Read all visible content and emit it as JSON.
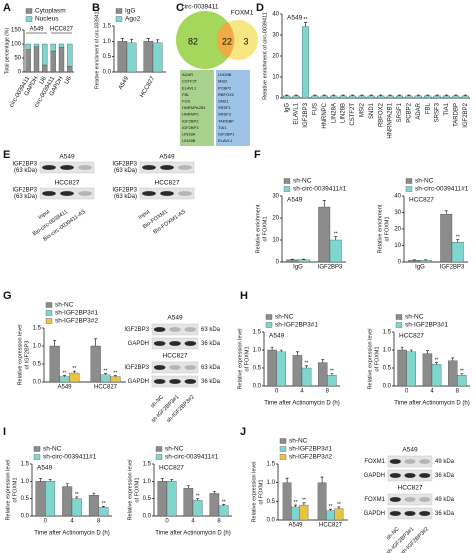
{
  "panel_labels": [
    "A",
    "B",
    "C",
    "D",
    "E",
    "F",
    "G",
    "H",
    "I",
    "J"
  ],
  "chart_data": [
    {
      "type": "stacked_bar",
      "ylabel": [
        "Total percentage (%)"
      ],
      "categories": [
        "circ-0039411",
        "GAPDH",
        "U6",
        "circ-0039411",
        "GAPDH",
        "U6"
      ],
      "group_labels": [
        "A549",
        "HCC827"
      ],
      "series": [
        {
          "name": "Cytoplasm",
          "color": "#8c8c8c",
          "values": [
            80,
            90,
            25,
            75,
            88,
            20
          ]
        },
        {
          "name": "Nucleus",
          "color": "#7fd6cf",
          "values": [
            20,
            10,
            75,
            25,
            12,
            80
          ]
        }
      ],
      "ylim": [
        0,
        150
      ],
      "yticks": [
        0,
        50,
        100,
        150
      ],
      "legend": true
    },
    {
      "type": "bar",
      "ylabel": [
        "Relative enrichment of circ-0039411"
      ],
      "categories": [
        "A549",
        "HCC827"
      ],
      "series": [
        {
          "name": "IgG",
          "color": "#8c8c8c",
          "values": [
            1.0,
            1.0
          ],
          "errors": [
            0.1,
            0.1
          ]
        },
        {
          "name": "Ago2",
          "color": "#7fd6cf",
          "values": [
            0.95,
            0.95
          ],
          "errors": [
            0.12,
            0.1
          ]
        }
      ],
      "ylim": [
        0,
        1.5
      ],
      "yticks": [
        {
          "value": 0,
          "label": "0.0"
        },
        {
          "value": 0.5,
          "label": "0.5"
        },
        {
          "value": 1,
          "label": "1.0"
        },
        {
          "value": 1.5,
          "label": "1.5"
        }
      ],
      "legend": true
    },
    {
      "type": "bar",
      "title": "A549",
      "ylabel": [
        "Relative enrichment of circ-0039411"
      ],
      "categories": [
        "IgG",
        "ELAVL1",
        "IGF2BP3",
        "FUS",
        "HNRNPC",
        "LIN28A",
        "LIN28B",
        "CSTF2T",
        "MSI2",
        "SND1",
        "RBFOX2",
        "HNRNPA2B1",
        "SRSF1",
        "PCBP2",
        "ADAR",
        "FBL",
        "SRSF3",
        "TIA1",
        "TARDBP",
        "IGF2BP2"
      ],
      "values": [
        1,
        1,
        34,
        1,
        1,
        1,
        1,
        1,
        1,
        1,
        1,
        1,
        1,
        1,
        1,
        1,
        1,
        1,
        1,
        1
      ],
      "errors": [
        0.4,
        0.4,
        2,
        0.4,
        0.4,
        0.4,
        0.4,
        0.4,
        0.4,
        0.4,
        0.4,
        0.4,
        0.4,
        0.4,
        0.4,
        0.4,
        0.4,
        0.4,
        0.4,
        0.4
      ],
      "significance": [
        null,
        null,
        "**",
        null,
        null,
        null,
        null,
        null,
        null,
        null,
        null,
        null,
        null,
        null,
        null,
        null,
        null,
        null,
        null,
        null
      ],
      "color": "#7fd6cf",
      "ylim": [
        0,
        40
      ],
      "yticks": [
        0,
        10,
        20,
        30,
        40
      ],
      "legend": false
    },
    {
      "type": "bar",
      "title": "A549",
      "ylabel": [
        "Relative enrichment",
        "of FOXM1"
      ],
      "categories": [
        "IgG",
        "IGF2BP3"
      ],
      "series": [
        {
          "name": "sh-NC",
          "color": "#8c8c8c",
          "values": [
            1,
            25
          ],
          "errors": [
            0.3,
            3
          ]
        },
        {
          "name": "sh-circ-0039411#1",
          "color": "#7fd6cf",
          "values": [
            1,
            10
          ],
          "errors": [
            0.3,
            1.5
          ],
          "significance": [
            null,
            "**"
          ]
        }
      ],
      "ylim": [
        0,
        30
      ],
      "yticks": [
        0,
        10,
        20,
        30
      ],
      "legend": true
    },
    {
      "type": "bar",
      "title": "HCC827",
      "ylabel": [
        "Relative enrichment",
        "of FOXM1"
      ],
      "categories": [
        "IgG",
        "IGF2BP3"
      ],
      "series": [
        {
          "name": "sh-NC",
          "color": "#8c8c8c",
          "values": [
            1,
            29
          ],
          "errors": [
            0.3,
            2
          ]
        },
        {
          "name": "sh-circ-0039411#1",
          "color": "#7fd6cf",
          "values": [
            1,
            12
          ],
          "errors": [
            0.3,
            1.5
          ],
          "significance": [
            null,
            "**"
          ]
        }
      ],
      "ylim": [
        0,
        40
      ],
      "yticks": [
        0,
        10,
        20,
        30,
        40
      ],
      "legend": true
    },
    {
      "type": "bar",
      "ylabel": [
        "Relative expression level",
        "of IGF2BP3"
      ],
      "categories": [
        "A549",
        "HCC827"
      ],
      "series": [
        {
          "name": "sh-NC",
          "color": "#8c8c8c",
          "values": [
            1.0,
            1.0
          ],
          "errors": [
            0.15,
            0.2
          ]
        },
        {
          "name": "sh-IGF2BP3#1",
          "color": "#7fd6cf",
          "values": [
            0.15,
            0.2
          ],
          "errors": [
            0.03,
            0.03
          ],
          "significance": [
            "**",
            "**"
          ]
        },
        {
          "name": "sh-IGF2BP3#2",
          "color": "#e8c440",
          "values": [
            0.25,
            0.15
          ],
          "errors": [
            0.05,
            0.03
          ],
          "significance": [
            "**",
            "**"
          ]
        }
      ],
      "ylim": [
        0,
        1.5
      ],
      "yticks": [
        {
          "value": 0,
          "label": "0.0"
        },
        {
          "value": 0.5,
          "label": "0.5"
        },
        {
          "value": 1,
          "label": "1.0"
        },
        {
          "value": 1.5,
          "label": "1.5"
        }
      ],
      "legend": true
    },
    {
      "type": "bar",
      "title": "A549",
      "ylabel": [
        "Relative expression level",
        "of FOXM1"
      ],
      "xlabel": "Time after Actinomycin D (h)",
      "categories": [
        "0",
        "4",
        "8"
      ],
      "series": [
        {
          "name": "sh-NC",
          "color": "#8c8c8c",
          "values": [
            1.0,
            0.85,
            0.65
          ],
          "errors": [
            0.08,
            0.1,
            0.08
          ]
        },
        {
          "name": "sh-IGF2BP3#1",
          "color": "#7fd6cf",
          "values": [
            0.95,
            0.5,
            0.3
          ],
          "errors": [
            0.05,
            0.06,
            0.04
          ],
          "significance": [
            null,
            "**",
            "**"
          ]
        }
      ],
      "ylim": [
        0,
        1.5
      ],
      "yticks": [
        {
          "value": 0,
          "label": "0.0"
        },
        {
          "value": 0.5,
          "label": "0.5"
        },
        {
          "value": 1,
          "label": "1.0"
        },
        {
          "value": 1.5,
          "label": "1.5"
        }
      ],
      "legend": true
    },
    {
      "type": "bar",
      "title": "HCC827",
      "ylabel": [
        "Relative expression level",
        "of FOXM1"
      ],
      "xlabel": "Time after Actinomycin D (h)",
      "categories": [
        "0",
        "4",
        "8"
      ],
      "series": [
        {
          "name": "sh-NC",
          "color": "#8c8c8c",
          "values": [
            1.0,
            0.9,
            0.7
          ],
          "errors": [
            0.08,
            0.08,
            0.08
          ]
        },
        {
          "name": "sh-IGF2BP3#1",
          "color": "#7fd6cf",
          "values": [
            0.95,
            0.6,
            0.3
          ],
          "errors": [
            0.05,
            0.05,
            0.04
          ],
          "significance": [
            null,
            "**",
            "**"
          ]
        }
      ],
      "ylim": [
        0,
        1.5
      ],
      "yticks": [
        {
          "value": 0,
          "label": "0.0"
        },
        {
          "value": 0.5,
          "label": "0.5"
        },
        {
          "value": 1,
          "label": "1.0"
        },
        {
          "value": 1.5,
          "label": "1.5"
        }
      ],
      "legend": true
    },
    {
      "type": "bar",
      "title": "A549",
      "ylabel": [
        "Relative expression level",
        "of FOXM1"
      ],
      "xlabel": "Time after Actinomycin D (h)",
      "categories": [
        "0",
        "4",
        "8"
      ],
      "series": [
        {
          "name": "sh-NC",
          "color": "#8c8c8c",
          "values": [
            1.0,
            0.85,
            0.6
          ],
          "errors": [
            0.08,
            0.08,
            0.06
          ]
        },
        {
          "name": "sh-circ-0039411#1",
          "color": "#7fd6cf",
          "values": [
            1.0,
            0.5,
            0.25
          ],
          "errors": [
            0.06,
            0.05,
            0.03
          ],
          "significance": [
            null,
            "**",
            "**"
          ]
        }
      ],
      "ylim": [
        0,
        1.5
      ],
      "yticks": [
        {
          "value": 0,
          "label": "0.0"
        },
        {
          "value": 0.5,
          "label": "0.5"
        },
        {
          "value": 1,
          "label": "1.0"
        },
        {
          "value": 1.5,
          "label": "1.5"
        }
      ],
      "legend": true
    },
    {
      "type": "bar",
      "title": "HCC827",
      "ylabel": [
        "Relative expression level",
        "of FOXM1"
      ],
      "xlabel": "Time after Actinomycin D (h)",
      "categories": [
        "0",
        "4",
        "8"
      ],
      "series": [
        {
          "name": "sh-NC",
          "color": "#8c8c8c",
          "values": [
            1.0,
            0.8,
            0.65
          ],
          "errors": [
            0.08,
            0.08,
            0.06
          ]
        },
        {
          "name": "sh-circ-0039411#1",
          "color": "#7fd6cf",
          "values": [
            1.0,
            0.45,
            0.3
          ],
          "errors": [
            0.06,
            0.05,
            0.03
          ],
          "significance": [
            null,
            "**",
            "**"
          ]
        }
      ],
      "ylim": [
        0,
        1.5
      ],
      "yticks": [
        {
          "value": 0,
          "label": "0.0"
        },
        {
          "value": 0.5,
          "label": "0.5"
        },
        {
          "value": 1,
          "label": "1.0"
        },
        {
          "value": 1.5,
          "label": "1.5"
        }
      ],
      "legend": true
    },
    {
      "type": "bar",
      "ylabel": [
        "Relative expression level",
        "of FOXM1"
      ],
      "categories": [
        "A549",
        "HCC827"
      ],
      "series": [
        {
          "name": "sh-NC",
          "color": "#8c8c8c",
          "values": [
            1.0,
            1.0
          ],
          "errors": [
            0.12,
            0.15
          ]
        },
        {
          "name": "sh-IGF2BP3#1",
          "color": "#7fd6cf",
          "values": [
            0.35,
            0.25
          ],
          "errors": [
            0.05,
            0.04
          ],
          "significance": [
            "**",
            "**"
          ]
        },
        {
          "name": "sh-IGF2BP3#2",
          "color": "#e8c440",
          "values": [
            0.4,
            0.3
          ],
          "errors": [
            0.06,
            0.05
          ],
          "significance": [
            "**",
            "**"
          ]
        }
      ],
      "ylim": [
        0,
        1.5
      ],
      "yticks": [
        {
          "value": 0,
          "label": "0.0"
        },
        {
          "value": 0.5,
          "label": "0.5"
        },
        {
          "value": 1,
          "label": "1.0"
        },
        {
          "value": 1.5,
          "label": "1.5"
        }
      ],
      "legend": true
    }
  ],
  "venn": {
    "sets": [
      "circ-0039411",
      "FOXM1"
    ],
    "counts": [
      82,
      22,
      3
    ],
    "lists": [
      [
        "ADAR",
        "CSTF2T",
        "ELAVL1",
        "FBL",
        "FUS",
        "HNRNPA2B1",
        "HNRNPC",
        "IGF2BP2",
        "IGF2BP3",
        "LIN28A",
        "LIN28B"
      ],
      [
        "LIN28B",
        "MSI2",
        "PCBP2",
        "RBFOX2",
        "SND1",
        "SRSF1",
        "SRSF3",
        "TARDBP",
        "TIA1",
        "IGF2BP1",
        "ELAVL1"
      ]
    ]
  },
  "blot_e": [
    {
      "cell_lines": [
        "A549",
        "HCC827"
      ],
      "protein": [
        "IGF2BP3",
        "(63 kDa)"
      ],
      "lanes": [
        "Input",
        "Bio-circ-0039411",
        "Bio-circ-0039411-AS"
      ]
    },
    {
      "cell_lines": [
        "A549",
        "HCC827"
      ],
      "protein": [
        "IGF2BP3",
        "(63 kDa)"
      ],
      "lanes": [
        "Input",
        "Bio-FOXM1",
        "Bio-FOXM1-AS"
      ]
    }
  ],
  "blot_g": {
    "cell_lines": [
      "A549",
      "HCC827"
    ],
    "proteins": [
      "IGF2BP3",
      "GAPDH"
    ],
    "sizes": [
      "63 kDa",
      "36 kDa"
    ],
    "lanes": [
      "sh-NC",
      "sh-IGF2BP3#1",
      "sh-IGF2BP3#2"
    ]
  },
  "blot_j": {
    "cell_lines": [
      "A549",
      "HCC827"
    ],
    "proteins": [
      "FOXM1",
      "GAPDH"
    ],
    "sizes": [
      "49 kDa",
      "36 kDa"
    ],
    "lanes": [
      "sh-NC",
      "sh-IGF2BP3#1",
      "sh-IGF2BP3#2"
    ]
  }
}
